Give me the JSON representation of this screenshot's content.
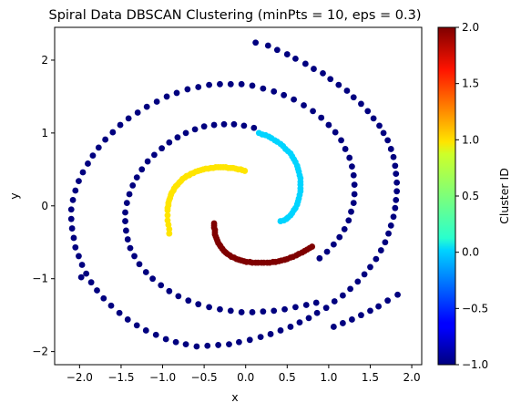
{
  "chart_data": {
    "type": "scatter",
    "title": "Spiral Data DBSCAN Clustering (minPts = 10, eps = 0.3)",
    "xlabel": "x",
    "ylabel": "y",
    "xlim": [
      -2.3,
      2.12
    ],
    "ylim": [
      -2.18,
      2.45
    ],
    "xticks": [
      -2.0,
      -1.5,
      -1.0,
      -0.5,
      0.0,
      0.5,
      1.0,
      1.5,
      2.0
    ],
    "yticks": [
      -2,
      -1,
      0,
      1,
      2
    ],
    "xtick_labels": [
      "−2.0",
      "−1.5",
      "−1.0",
      "−0.5",
      "0.0",
      "0.5",
      "1.0",
      "1.5",
      "2.0"
    ],
    "ytick_labels": [
      "−2",
      "−1",
      "0",
      "1",
      "2"
    ],
    "grid": false,
    "colorbar": {
      "label": "Cluster ID",
      "range": [
        -1.0,
        2.0
      ],
      "ticks": [
        -1.0,
        -0.5,
        0.0,
        0.5,
        1.0,
        1.5,
        2.0
      ],
      "tick_labels": [
        "−1.0",
        "−0.5",
        "0.0",
        "0.5",
        "1.0",
        "1.5",
        "2.0"
      ],
      "colormap": "jet"
    },
    "series": [
      {
        "cluster_id": -1,
        "color": "#00007f",
        "points": [
          [
            0.12,
            2.24
          ],
          [
            0.27,
            2.2
          ],
          [
            0.38,
            2.14
          ],
          [
            0.5,
            2.08
          ],
          [
            0.6,
            2.02
          ],
          [
            0.72,
            1.95
          ],
          [
            0.82,
            1.88
          ],
          [
            0.93,
            1.82
          ],
          [
            1.02,
            1.74
          ],
          [
            1.12,
            1.66
          ],
          [
            1.22,
            1.58
          ],
          [
            1.3,
            1.49
          ],
          [
            1.39,
            1.4
          ],
          [
            1.47,
            1.3
          ],
          [
            1.54,
            1.2
          ],
          [
            1.61,
            1.1
          ],
          [
            1.66,
            1.0
          ],
          [
            1.71,
            0.9
          ],
          [
            1.75,
            0.78
          ],
          [
            1.78,
            0.67
          ],
          [
            1.8,
            0.55
          ],
          [
            1.81,
            0.44
          ],
          [
            1.82,
            0.32
          ],
          [
            1.82,
            0.2
          ],
          [
            1.81,
            0.08
          ],
          [
            1.8,
            -0.03
          ],
          [
            1.78,
            -0.15
          ],
          [
            1.75,
            -0.27
          ],
          [
            1.72,
            -0.38
          ],
          [
            1.68,
            -0.5
          ],
          [
            1.63,
            -0.61
          ],
          [
            1.57,
            -0.73
          ],
          [
            1.5,
            -0.84
          ],
          [
            1.43,
            -0.94
          ],
          [
            1.35,
            -1.04
          ],
          [
            1.26,
            -1.14
          ],
          [
            1.17,
            -1.23
          ],
          [
            1.07,
            -1.31
          ],
          [
            0.97,
            -1.4
          ],
          [
            0.86,
            -1.47
          ],
          [
            0.76,
            -1.54
          ],
          [
            0.65,
            -1.6
          ],
          [
            0.54,
            -1.66
          ],
          [
            0.42,
            -1.71
          ],
          [
            0.3,
            -1.76
          ],
          [
            0.18,
            -1.8
          ],
          [
            0.05,
            -1.84
          ],
          [
            -0.08,
            -1.87
          ],
          [
            -0.2,
            -1.9
          ],
          [
            -0.33,
            -1.91
          ],
          [
            -0.46,
            -1.92
          ],
          [
            -0.59,
            -1.93
          ],
          [
            -0.72,
            -1.9
          ],
          [
            -0.84,
            -1.87
          ],
          [
            -0.96,
            -1.83
          ],
          [
            -1.08,
            -1.77
          ],
          [
            -1.2,
            -1.71
          ],
          [
            -1.31,
            -1.64
          ],
          [
            -1.42,
            -1.56
          ],
          [
            -1.52,
            -1.47
          ],
          [
            -1.62,
            -1.37
          ],
          [
            -1.71,
            -1.27
          ],
          [
            -1.79,
            -1.16
          ],
          [
            -1.86,
            -1.05
          ],
          [
            -1.92,
            -0.93
          ],
          [
            -1.97,
            -0.81
          ],
          [
            -2.01,
            -0.69
          ],
          [
            -2.05,
            -0.57
          ],
          [
            -2.07,
            -0.44
          ],
          [
            -2.09,
            -0.31
          ],
          [
            -2.1,
            -0.18
          ],
          [
            -2.1,
            -0.05
          ],
          [
            -2.08,
            0.08
          ],
          [
            -2.05,
            0.21
          ],
          [
            -2.01,
            0.34
          ],
          [
            -1.96,
            0.46
          ],
          [
            -1.9,
            0.58
          ],
          [
            -1.84,
            0.69
          ],
          [
            -1.77,
            0.8
          ],
          [
            -1.69,
            0.91
          ],
          [
            -1.6,
            1.01
          ],
          [
            -1.51,
            1.11
          ],
          [
            -1.41,
            1.2
          ],
          [
            -1.3,
            1.28
          ],
          [
            -1.19,
            1.36
          ],
          [
            -1.07,
            1.43
          ],
          [
            -0.95,
            1.5
          ],
          [
            -0.83,
            1.55
          ],
          [
            -0.7,
            1.6
          ],
          [
            -0.57,
            1.63
          ],
          [
            -0.44,
            1.66
          ],
          [
            -0.31,
            1.67
          ],
          [
            -0.18,
            1.67
          ],
          [
            -0.05,
            1.67
          ],
          [
            0.08,
            1.65
          ],
          [
            0.21,
            1.61
          ],
          [
            0.34,
            1.57
          ],
          [
            0.46,
            1.52
          ],
          [
            0.58,
            1.46
          ],
          [
            0.7,
            1.38
          ],
          [
            0.81,
            1.3
          ],
          [
            0.91,
            1.21
          ],
          [
            1.0,
            1.11
          ],
          [
            1.08,
            1.01
          ],
          [
            1.15,
            0.9
          ],
          [
            1.2,
            0.78
          ],
          [
            1.25,
            0.66
          ],
          [
            1.28,
            0.54
          ],
          [
            1.3,
            0.42
          ],
          [
            1.31,
            0.29
          ],
          [
            1.31,
            0.16
          ],
          [
            1.3,
            0.04
          ],
          [
            1.27,
            -0.08
          ],
          [
            1.24,
            -0.2
          ],
          [
            1.19,
            -0.32
          ],
          [
            1.13,
            -0.43
          ],
          [
            1.06,
            -0.53
          ],
          [
            0.98,
            -0.63
          ],
          [
            0.89,
            -0.72
          ],
          [
            1.83,
            -1.22
          ],
          [
            1.71,
            -1.3
          ],
          [
            1.6,
            -1.38
          ],
          [
            1.5,
            -1.44
          ],
          [
            1.39,
            -1.5
          ],
          [
            1.28,
            -1.56
          ],
          [
            1.17,
            -1.61
          ],
          [
            1.06,
            -1.66
          ],
          [
            0.85,
            -1.33
          ],
          [
            0.73,
            -1.36
          ],
          [
            0.6,
            -1.39
          ],
          [
            0.47,
            -1.42
          ],
          [
            0.34,
            -1.44
          ],
          [
            0.21,
            -1.45
          ],
          [
            0.08,
            -1.46
          ],
          [
            -0.05,
            -1.46
          ],
          [
            -0.18,
            -1.44
          ],
          [
            -0.31,
            -1.42
          ],
          [
            -0.44,
            -1.39
          ],
          [
            -0.57,
            -1.35
          ],
          [
            -0.69,
            -1.3
          ],
          [
            -0.81,
            -1.24
          ],
          [
            -0.92,
            -1.17
          ],
          [
            -1.02,
            -1.09
          ],
          [
            -1.12,
            -1.0
          ],
          [
            -1.2,
            -0.91
          ],
          [
            -1.28,
            -0.8
          ],
          [
            -1.34,
            -0.69
          ],
          [
            -1.39,
            -0.58
          ],
          [
            -1.42,
            -0.46
          ],
          [
            -1.44,
            -0.34
          ],
          [
            -1.45,
            -0.21
          ],
          [
            -1.45,
            -0.09
          ],
          [
            -1.43,
            0.04
          ],
          [
            -1.4,
            0.16
          ],
          [
            -1.36,
            0.28
          ],
          [
            -1.31,
            0.39
          ],
          [
            -1.25,
            0.5
          ],
          [
            -1.18,
            0.61
          ],
          [
            -1.1,
            0.7
          ],
          [
            -1.01,
            0.79
          ],
          [
            -0.92,
            0.87
          ],
          [
            -0.82,
            0.94
          ],
          [
            -0.72,
            1.0
          ],
          [
            -0.61,
            1.05
          ],
          [
            -0.5,
            1.09
          ],
          [
            -0.38,
            1.11
          ],
          [
            -0.26,
            1.12
          ],
          [
            -0.14,
            1.12
          ],
          [
            -0.02,
            1.1
          ],
          [
            0.1,
            1.07
          ],
          [
            -1.98,
            -0.98
          ]
        ]
      },
      {
        "cluster_id": 0,
        "color": "#00d4ff",
        "points": [
          [
            0.16,
            1.0
          ],
          [
            0.24,
            0.97
          ],
          [
            0.31,
            0.93
          ],
          [
            0.38,
            0.88
          ],
          [
            0.45,
            0.82
          ],
          [
            0.51,
            0.75
          ],
          [
            0.56,
            0.68
          ],
          [
            0.6,
            0.6
          ],
          [
            0.63,
            0.51
          ],
          [
            0.65,
            0.42
          ],
          [
            0.66,
            0.33
          ],
          [
            0.66,
            0.24
          ],
          [
            0.65,
            0.15
          ],
          [
            0.63,
            0.06
          ],
          [
            0.6,
            -0.03
          ],
          [
            0.56,
            -0.1
          ],
          [
            0.51,
            -0.16
          ],
          [
            0.46,
            -0.2
          ],
          [
            0.42,
            -0.21
          ],
          [
            0.2,
            0.98
          ],
          [
            0.28,
            0.95
          ],
          [
            0.35,
            0.9
          ],
          [
            0.42,
            0.85
          ],
          [
            0.48,
            0.78
          ],
          [
            0.54,
            0.72
          ],
          [
            0.58,
            0.64
          ],
          [
            0.62,
            0.55
          ],
          [
            0.64,
            0.47
          ],
          [
            0.66,
            0.38
          ],
          [
            0.66,
            0.29
          ],
          [
            0.66,
            0.2
          ],
          [
            0.64,
            0.1
          ],
          [
            0.62,
            0.02
          ],
          [
            0.58,
            -0.06
          ],
          [
            0.54,
            -0.13
          ],
          [
            0.49,
            -0.18
          ]
        ]
      },
      {
        "cluster_id": 1,
        "color": "#ffe500",
        "points": [
          [
            -0.01,
            0.48
          ],
          [
            -0.06,
            0.5
          ],
          [
            -0.12,
            0.51
          ],
          [
            -0.18,
            0.52
          ],
          [
            -0.24,
            0.53
          ],
          [
            -0.3,
            0.53
          ],
          [
            -0.36,
            0.53
          ],
          [
            -0.42,
            0.52
          ],
          [
            -0.48,
            0.51
          ],
          [
            -0.54,
            0.49
          ],
          [
            -0.6,
            0.47
          ],
          [
            -0.66,
            0.44
          ],
          [
            -0.71,
            0.41
          ],
          [
            -0.76,
            0.37
          ],
          [
            -0.8,
            0.32
          ],
          [
            -0.84,
            0.27
          ],
          [
            -0.87,
            0.21
          ],
          [
            -0.9,
            0.15
          ],
          [
            -0.92,
            0.08
          ],
          [
            -0.93,
            0.01
          ],
          [
            -0.94,
            -0.06
          ],
          [
            -0.94,
            -0.13
          ],
          [
            -0.94,
            -0.2
          ],
          [
            -0.93,
            -0.26
          ],
          [
            -0.92,
            -0.32
          ],
          [
            -0.92,
            -0.38
          ],
          [
            -0.04,
            0.49
          ],
          [
            -0.09,
            0.5
          ],
          [
            -0.15,
            0.52
          ],
          [
            -0.21,
            0.52
          ],
          [
            -0.27,
            0.53
          ],
          [
            -0.33,
            0.53
          ],
          [
            -0.39,
            0.52
          ],
          [
            -0.45,
            0.51
          ],
          [
            -0.51,
            0.5
          ],
          [
            -0.57,
            0.48
          ],
          [
            -0.63,
            0.45
          ],
          [
            -0.68,
            0.42
          ],
          [
            -0.73,
            0.39
          ],
          [
            -0.78,
            0.34
          ],
          [
            -0.82,
            0.29
          ],
          [
            -0.86,
            0.24
          ],
          [
            -0.89,
            0.18
          ],
          [
            -0.91,
            0.11
          ],
          [
            -0.93,
            0.04
          ],
          [
            -0.94,
            -0.03
          ]
        ]
      },
      {
        "cluster_id": 2,
        "color": "#7f0000",
        "points": [
          [
            -0.38,
            -0.24
          ],
          [
            -0.38,
            -0.3
          ],
          [
            -0.37,
            -0.36
          ],
          [
            -0.36,
            -0.42
          ],
          [
            -0.34,
            -0.48
          ],
          [
            -0.31,
            -0.54
          ],
          [
            -0.28,
            -0.59
          ],
          [
            -0.24,
            -0.64
          ],
          [
            -0.19,
            -0.68
          ],
          [
            -0.14,
            -0.71
          ],
          [
            -0.08,
            -0.74
          ],
          [
            -0.02,
            -0.76
          ],
          [
            0.05,
            -0.77
          ],
          [
            0.12,
            -0.78
          ],
          [
            0.19,
            -0.78
          ],
          [
            0.26,
            -0.78
          ],
          [
            0.33,
            -0.77
          ],
          [
            0.4,
            -0.76
          ],
          [
            0.47,
            -0.74
          ],
          [
            0.54,
            -0.71
          ],
          [
            0.61,
            -0.68
          ],
          [
            0.68,
            -0.64
          ],
          [
            0.74,
            -0.6
          ],
          [
            0.8,
            -0.56
          ],
          [
            -0.38,
            -0.27
          ],
          [
            -0.37,
            -0.33
          ],
          [
            -0.37,
            -0.39
          ],
          [
            -0.35,
            -0.45
          ],
          [
            -0.33,
            -0.51
          ],
          [
            -0.3,
            -0.56
          ],
          [
            -0.26,
            -0.62
          ],
          [
            -0.22,
            -0.66
          ],
          [
            -0.17,
            -0.7
          ],
          [
            -0.11,
            -0.73
          ],
          [
            -0.05,
            -0.75
          ],
          [
            0.01,
            -0.77
          ],
          [
            0.08,
            -0.78
          ],
          [
            0.15,
            -0.78
          ],
          [
            0.22,
            -0.78
          ],
          [
            0.29,
            -0.78
          ],
          [
            0.36,
            -0.77
          ],
          [
            0.43,
            -0.75
          ],
          [
            0.5,
            -0.73
          ],
          [
            0.57,
            -0.7
          ],
          [
            0.64,
            -0.66
          ],
          [
            0.71,
            -0.62
          ],
          [
            0.77,
            -0.58
          ]
        ]
      }
    ]
  }
}
